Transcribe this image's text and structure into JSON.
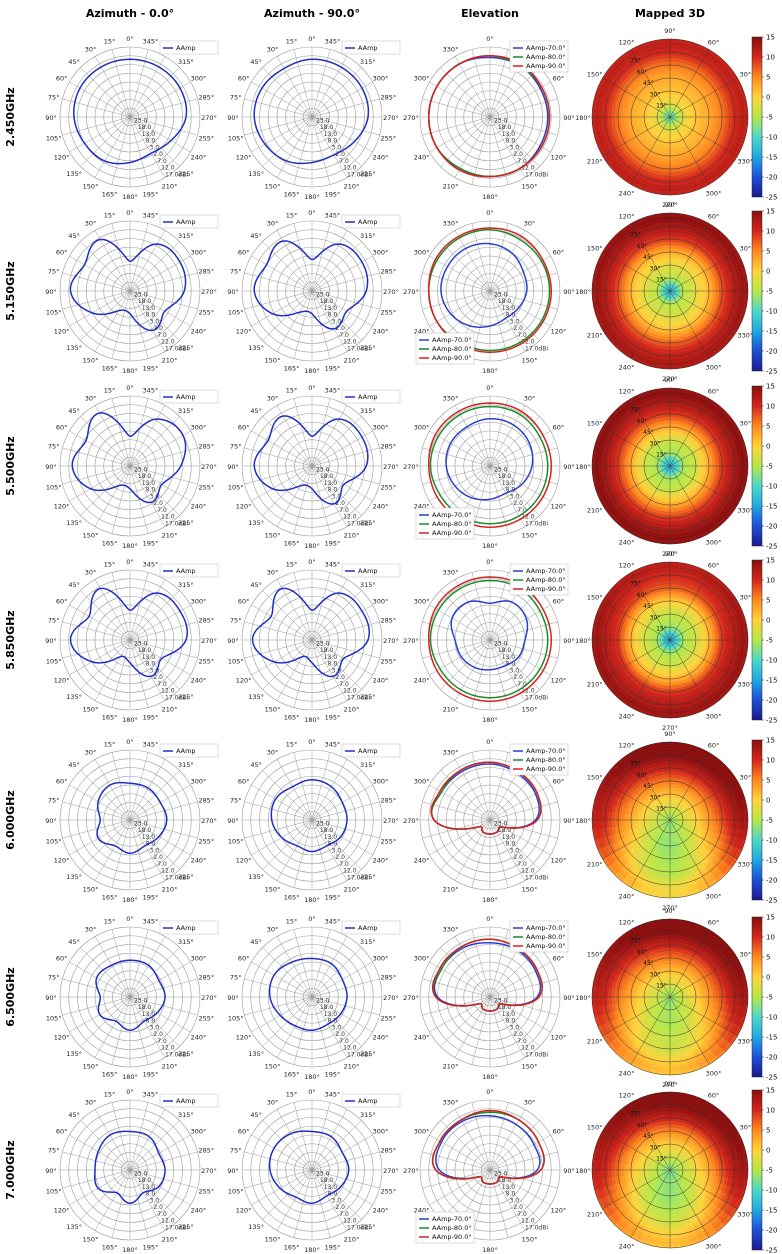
{
  "column_titles": [
    "Azimuth - 0.0°",
    "Azimuth - 90.0°",
    "Elevation",
    "Mapped 3D"
  ],
  "row_labels": [
    "2.450GHz",
    "5.150GHz",
    "5.500GHz",
    "5.850GHz",
    "6.000GHz",
    "6.500GHz",
    "7.000GHz"
  ],
  "azimuth_angle_labels": [
    "0°",
    "15°",
    "30°",
    "45°",
    "60°",
    "75°",
    "90°",
    "105°",
    "120°",
    "135°",
    "150°",
    "165°",
    "180°",
    "195°",
    "210°",
    "225°",
    "240°",
    "255°",
    "270°",
    "285°",
    "300°",
    "315°",
    "330°",
    "345°"
  ],
  "elevation_angle_labels": [
    "0°",
    "30°",
    "60°",
    "90°",
    "120°",
    "150°",
    "180°",
    "210°",
    "240°",
    "270°",
    "300°",
    "330°"
  ],
  "mapped3d_angle_labels": [
    "0°",
    "30°",
    "60°",
    "90°",
    "120°",
    "150°",
    "180°",
    "210°",
    "240°",
    "270°",
    "300°",
    "330°"
  ],
  "mapped3d_ring_labels": [
    "15°",
    "30°",
    "45°",
    "60°",
    "75°"
  ],
  "radial_tick_labels": [
    "23.0",
    "18.0",
    "13.0",
    "8.0",
    "3.0",
    "2.0",
    "7.0",
    "12.0",
    "17.0"
  ],
  "radial_unit_label": "dBi",
  "colorbar_ticks": [
    "15",
    "10",
    "5",
    "0",
    "-5",
    "-10",
    "-15",
    "-20",
    "-25"
  ],
  "colorbar_range": [
    -25,
    15
  ],
  "colors": {
    "amp": "#1f2ec4",
    "el70": "#2a3fd0",
    "el80": "#1d8a2a",
    "el90": "#d82020",
    "grid": "#9a9a9a",
    "colormap": [
      "#1a1a8c",
      "#1f4fd6",
      "#1fa8e0",
      "#4fd8c8",
      "#b6e84a",
      "#ffd23c",
      "#ff8a20",
      "#d2261c",
      "#8a0f0f"
    ]
  },
  "chart_data": [
    {
      "type": "polar",
      "name": "Azimuth - 0.0°",
      "series_name": "AAmp",
      "rlim_dBi": [
        -23,
        17
      ],
      "angles_deg": [
        0,
        30,
        60,
        90,
        120,
        150,
        180,
        210,
        240,
        270,
        300,
        330
      ],
      "rows": [
        {
          "freq": "2.450GHz",
          "values": [
            10,
            10,
            10,
            9,
            7,
            6,
            3,
            1,
            4,
            9,
            10,
            10
          ]
        },
        {
          "freq": "5.150GHz",
          "values": [
            -6,
            11,
            7,
            11,
            2,
            -10,
            -10,
            3,
            0,
            8,
            10,
            8
          ]
        },
        {
          "freq": "5.500GHz",
          "values": [
            -6,
            12,
            6,
            10,
            3,
            -10,
            -10,
            1,
            -2,
            6,
            12,
            8
          ]
        },
        {
          "freq": "5.850GHz",
          "values": [
            -6,
            11,
            4,
            11,
            2,
            -12,
            -10,
            1,
            -2,
            9,
            10,
            8
          ]
        },
        {
          "freq": "6.000GHz",
          "values": [
            -2,
            0,
            -2,
            -6,
            -2,
            -6,
            -4,
            -6,
            -4,
            -2,
            -3,
            -2
          ]
        },
        {
          "freq": "6.500GHz",
          "values": [
            -2,
            -2,
            -1,
            -6,
            -3,
            -7,
            -4,
            -7,
            -5,
            -3,
            -4,
            -2
          ]
        },
        {
          "freq": "7.000GHz",
          "values": [
            -1,
            0,
            -2,
            -3,
            -2,
            -8,
            -4,
            -8,
            -4,
            -3,
            -4,
            -1
          ]
        }
      ]
    },
    {
      "type": "polar",
      "name": "Azimuth - 90.0°",
      "series_name": "AAmp",
      "rlim_dBi": [
        -23,
        17
      ],
      "angles_deg": [
        0,
        30,
        60,
        90,
        120,
        150,
        180,
        210,
        240,
        270,
        300,
        330
      ],
      "rows": [
        {
          "freq": "2.450GHz",
          "values": [
            10,
            9,
            10,
            10,
            8,
            6,
            3,
            2,
            5,
            9,
            10,
            10
          ]
        },
        {
          "freq": "5.150GHz",
          "values": [
            -5,
            10,
            7,
            10,
            3,
            -9,
            -10,
            2,
            0,
            8,
            10,
            8
          ]
        },
        {
          "freq": "5.500GHz",
          "values": [
            -6,
            10,
            6,
            10,
            3,
            -10,
            -10,
            2,
            -2,
            8,
            10,
            8
          ]
        },
        {
          "freq": "5.850GHz",
          "values": [
            -6,
            11,
            4,
            11,
            2,
            -12,
            -10,
            1,
            -2,
            9,
            10,
            8
          ]
        },
        {
          "freq": "6.000GHz",
          "values": [
            0,
            -1,
            1,
            0,
            -3,
            -6,
            -5,
            -6,
            -4,
            -3,
            -3,
            -1
          ]
        },
        {
          "freq": "6.500GHz",
          "values": [
            -1,
            0,
            2,
            1,
            -2,
            -4,
            -4,
            -5,
            -4,
            -3,
            -3,
            -1
          ]
        },
        {
          "freq": "7.000GHz",
          "values": [
            -1,
            1,
            2,
            1,
            -2,
            -5,
            -4,
            -6,
            -4,
            -2,
            -3,
            -1
          ]
        }
      ]
    },
    {
      "type": "polar",
      "name": "Elevation",
      "series_names": [
        "AAmp-70.0°",
        "AAmp-80.0°",
        "AAmp-90.0°"
      ],
      "rlim_dBi": [
        -23,
        17
      ],
      "angles_deg": [
        0,
        30,
        60,
        90,
        120,
        150,
        180,
        210,
        240,
        270,
        300,
        330
      ],
      "rows": [
        {
          "freq": "2.450GHz",
          "values": [
            [
              10,
              10,
              11,
              11,
              12,
              12,
              12,
              12,
              11,
              11,
              11,
              10
            ],
            [
              11,
              11,
              11,
              12,
              12,
              12,
              12,
              12,
              11,
              11,
              11,
              11
            ],
            [
              11,
              11,
              12,
              12,
              12,
              12,
              12,
              12,
              12,
              11,
              11,
              11
            ]
          ]
        },
        {
          "freq": "5.150GHz",
          "values": [
            [
              -2,
              -1,
              2,
              4,
              5,
              5,
              5,
              3,
              0,
              -3,
              -5,
              -4
            ],
            [
              11,
              11,
              11,
              12,
              12,
              12,
              12,
              12,
              11,
              11,
              11,
              11
            ],
            [
              12,
              12,
              13,
              13,
              13,
              13,
              12,
              12,
              12,
              12,
              12,
              12
            ]
          ]
        },
        {
          "freq": "5.500GHz",
          "values": [
            [
              1,
              3,
              4,
              4,
              3,
              3,
              2,
              0,
              -2,
              -4,
              -5,
              -2
            ],
            [
              10,
              10,
              11,
              11,
              11,
              11,
              11,
              10,
              10,
              10,
              10,
              10
            ],
            [
              12,
              12,
              13,
              13,
              13,
              13,
              12,
              12,
              12,
              12,
              12,
              12
            ]
          ]
        },
        {
          "freq": "5.850GHz",
          "values": [
            [
              -3,
              1,
              2,
              -2,
              2,
              2,
              -3,
              -4,
              -5,
              -6,
              -6,
              -4
            ],
            [
              10,
              10,
              11,
              11,
              11,
              11,
              11,
              10,
              10,
              10,
              10,
              10
            ],
            [
              12,
              12,
              13,
              13,
              13,
              13,
              12,
              12,
              12,
              12,
              12,
              12
            ]
          ]
        },
        {
          "freq": "6.000GHz",
          "values": [
            [
              3,
              7,
              8,
              9,
              9,
              9,
              9,
              -15,
              -15,
              -15,
              -15,
              -15
            ],
            [
              4,
              8,
              9,
              10,
              10,
              9,
              9,
              -15,
              -15,
              -15,
              -15,
              -15
            ],
            [
              4,
              8,
              9,
              10,
              10,
              10,
              9,
              -15,
              -15,
              -15,
              -15,
              -15
            ]
          ]
        },
        {
          "freq": "6.500GHz",
          "values": [
            [
              4,
              7,
              8,
              8,
              9,
              9,
              7,
              -15,
              -15,
              -15,
              -15,
              -15
            ],
            [
              5,
              8,
              9,
              10,
              10,
              9,
              8,
              -15,
              -15,
              -15,
              -15,
              -15
            ],
            [
              5,
              8,
              9,
              10,
              10,
              10,
              8,
              -15,
              -15,
              -15,
              -15,
              -15
            ]
          ]
        },
        {
          "freq": "7.000GHz",
          "values": [
            [
              4,
              6,
              7,
              8,
              9,
              9,
              6,
              -15,
              -15,
              -15,
              -15,
              -15
            ],
            [
              6,
              9,
              10,
              10,
              10,
              10,
              8,
              -15,
              -15,
              -15,
              -15,
              -15
            ],
            [
              6,
              9,
              10,
              11,
              10,
              10,
              8,
              -15,
              -15,
              -15,
              -15,
              -15
            ]
          ]
        }
      ]
    },
    {
      "type": "heatmap",
      "name": "Mapped 3D",
      "projection": "polar",
      "colorbar_range": [
        -25,
        15
      ],
      "rows": [
        {
          "freq": "2.450GHz",
          "rings_inner_to_outer": [
            -8,
            -2,
            1,
            3,
            6,
            10
          ],
          "angular_angles_deg": [
            0,
            90,
            180,
            270
          ],
          "angular_offsets": [
            0,
            0,
            0,
            0
          ]
        },
        {
          "freq": "5.150GHz",
          "rings_inner_to_outer": [
            -12,
            -5,
            -2,
            2,
            8,
            12
          ],
          "angular_angles_deg": [
            0,
            90,
            180,
            270
          ],
          "angular_offsets": [
            0,
            1,
            0,
            -1
          ]
        },
        {
          "freq": "5.500GHz",
          "rings_inner_to_outer": [
            -12,
            -6,
            -3,
            3,
            9,
            13
          ],
          "angular_angles_deg": [
            0,
            90,
            180,
            270
          ],
          "angular_offsets": [
            0,
            0,
            0,
            0
          ]
        },
        {
          "freq": "5.850GHz",
          "rings_inner_to_outer": [
            -13,
            -6,
            -3,
            2,
            9,
            12
          ],
          "angular_angles_deg": [
            0,
            90,
            180,
            270
          ],
          "angular_offsets": [
            0,
            -2,
            0,
            0
          ]
        },
        {
          "freq": "6.000GHz",
          "rings_inner_to_outer": [
            -5,
            -3,
            0,
            4,
            8,
            12
          ],
          "angular_angles_deg": [
            0,
            90,
            180,
            270
          ],
          "angular_offsets": [
            0,
            3,
            -2,
            -14
          ]
        },
        {
          "freq": "6.500GHz",
          "rings_inner_to_outer": [
            -5,
            -3,
            0,
            4,
            8,
            12
          ],
          "angular_angles_deg": [
            0,
            90,
            180,
            270
          ],
          "angular_offsets": [
            0,
            3,
            -2,
            -12
          ]
        },
        {
          "freq": "7.000GHz",
          "rings_inner_to_outer": [
            -6,
            -4,
            -1,
            3,
            8,
            12
          ],
          "angular_angles_deg": [
            0,
            90,
            180,
            270
          ],
          "angular_offsets": [
            0,
            3,
            -2,
            -12
          ]
        }
      ]
    }
  ]
}
